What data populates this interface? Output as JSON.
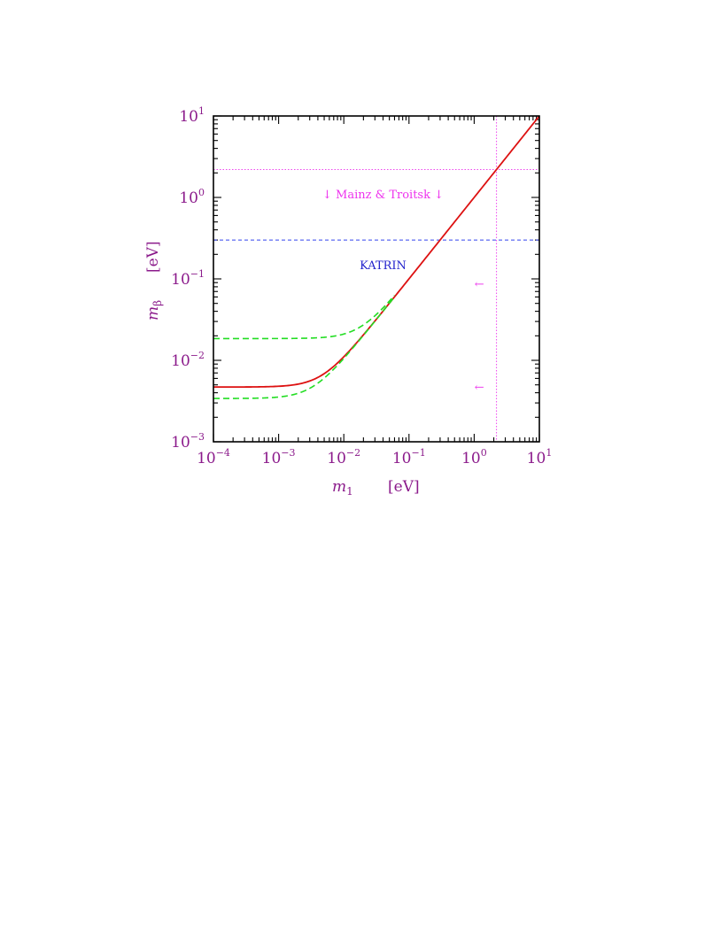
{
  "chart_data": {
    "type": "line",
    "xscale": "log",
    "yscale": "log",
    "xlim": [
      0.0001,
      10
    ],
    "ylim": [
      0.001,
      10
    ],
    "x_tick_labels": [
      {
        "base": "10",
        "exp": "−4"
      },
      {
        "base": "10",
        "exp": "−3"
      },
      {
        "base": "10",
        "exp": "−2"
      },
      {
        "base": "10",
        "exp": "−1"
      },
      {
        "base": "10",
        "exp": "0"
      },
      {
        "base": "10",
        "exp": "1"
      }
    ],
    "y_tick_labels": [
      {
        "base": "10",
        "exp": "−3"
      },
      {
        "base": "10",
        "exp": "−2"
      },
      {
        "base": "10",
        "exp": "−1"
      },
      {
        "base": "10",
        "exp": "0"
      },
      {
        "base": "10",
        "exp": "1"
      }
    ],
    "xlabel": {
      "symbol": "m",
      "sub": "1",
      "unit": "[eV]"
    },
    "ylabel": {
      "symbol": "m",
      "sub": "β",
      "unit": "[eV]"
    },
    "grid": false,
    "series": [
      {
        "style": "solid",
        "color": "#dd1111",
        "floor": 0.0047,
        "x": [
          0.0001,
          0.001,
          0.003,
          0.005,
          0.01,
          0.03,
          0.1,
          0.3,
          1,
          3,
          10
        ],
        "y": [
          0.0047,
          0.00472,
          0.0056,
          0.0069,
          0.011,
          0.03,
          0.1,
          0.3,
          1.0,
          3.0,
          10.0
        ]
      },
      {
        "style": "dashed",
        "color": "#22dd22",
        "floor": 0.0185,
        "x": [
          0.0001,
          0.001,
          0.003,
          0.005,
          0.01,
          0.02,
          0.04,
          0.06
        ],
        "y": [
          0.0185,
          0.0186,
          0.0192,
          0.0198,
          0.021,
          0.027,
          0.044,
          0.063
        ]
      },
      {
        "style": "dashed",
        "color": "#22dd22",
        "floor": 0.0034,
        "x": [
          0.0001,
          0.001,
          0.003,
          0.005,
          0.01,
          0.02,
          0.04,
          0.06
        ],
        "y": [
          0.0034,
          0.00342,
          0.0045,
          0.006,
          0.0106,
          0.02,
          0.04,
          0.06
        ]
      }
    ],
    "reference_lines": [
      {
        "orientation": "horizontal",
        "value": 2.2,
        "color": "#ee44ee",
        "style": "dotted"
      },
      {
        "orientation": "horizontal",
        "value": 0.3,
        "color": "#3344ee",
        "style": "dashed"
      },
      {
        "orientation": "vertical",
        "value": 2.2,
        "color": "#ee44ee",
        "style": "dotted"
      }
    ],
    "annotations": [
      {
        "text": "↓ Mainz & Troitsk ↓",
        "x": 0.04,
        "y": 1.1,
        "color": "#ee33ee"
      },
      {
        "text": "KATRIN",
        "x": 0.04,
        "y": 0.15,
        "color": "#2222cc"
      },
      {
        "text": "←",
        "x": 1.2,
        "y": 0.088,
        "color": "#ee44ee"
      },
      {
        "text": "←",
        "x": 1.2,
        "y": 0.0048,
        "color": "#ee44ee"
      }
    ]
  }
}
